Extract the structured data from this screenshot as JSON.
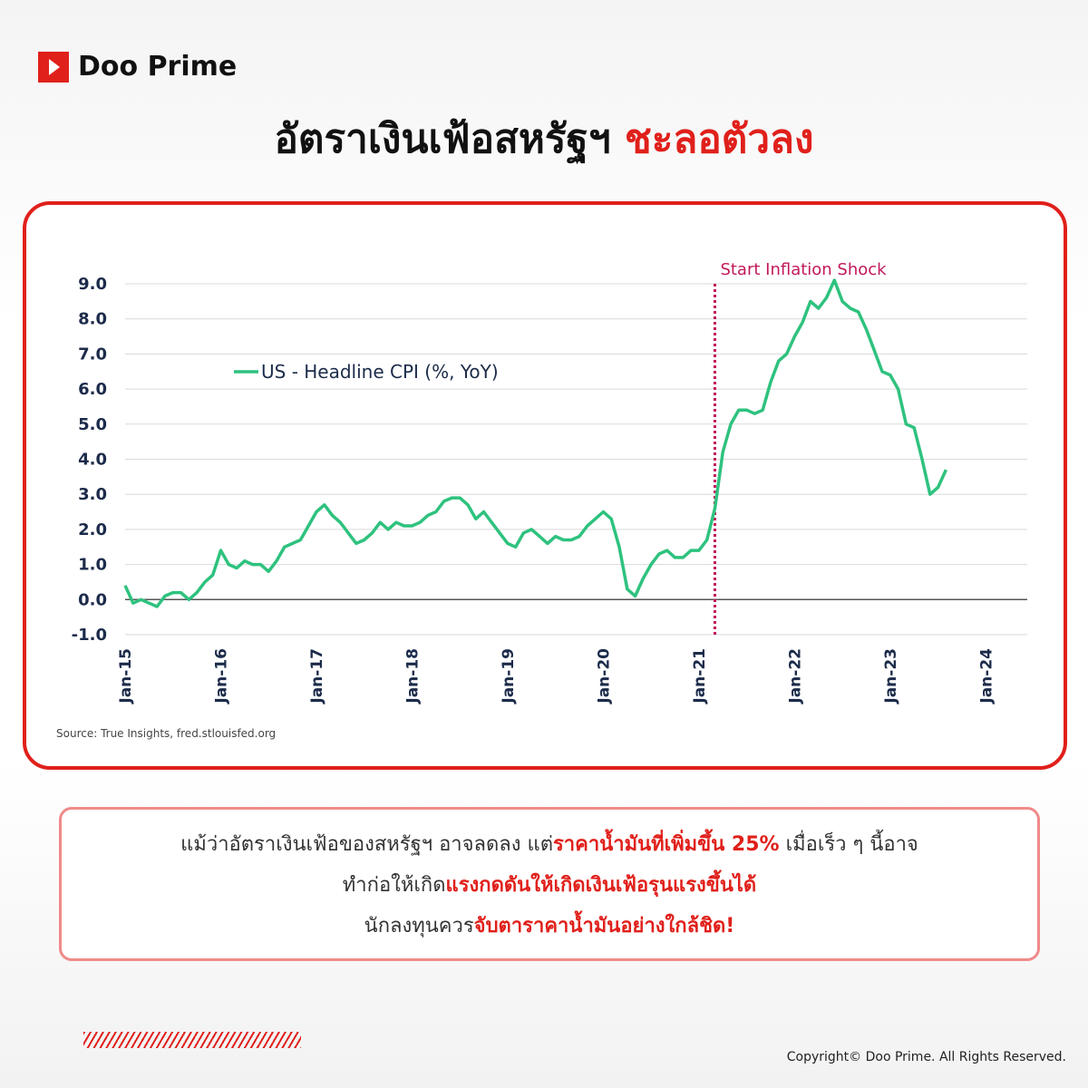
{
  "brand": "Doo Prime",
  "title": {
    "main": "อัตราเงินเฟ้อสหรัฐฯ",
    "accent": "ชะลอตัวลง"
  },
  "chart_data": {
    "type": "line",
    "categories": [
      "Jan-15",
      null,
      null,
      null,
      null,
      null,
      null,
      null,
      null,
      null,
      null,
      null,
      "Jan-16",
      null,
      null,
      null,
      null,
      null,
      null,
      null,
      null,
      null,
      null,
      null,
      "Jan-17",
      null,
      null,
      null,
      null,
      null,
      null,
      null,
      null,
      null,
      null,
      null,
      "Jan-18",
      null,
      null,
      null,
      null,
      null,
      null,
      null,
      null,
      null,
      null,
      null,
      "Jan-19",
      null,
      null,
      null,
      null,
      null,
      null,
      null,
      null,
      null,
      null,
      null,
      "Jan-20",
      null,
      null,
      null,
      null,
      null,
      null,
      null,
      null,
      null,
      null,
      null,
      "Jan-21",
      null,
      null,
      null,
      null,
      null,
      null,
      null,
      null,
      null,
      null,
      null,
      "Jan-22",
      null,
      null,
      null,
      null,
      null,
      null,
      null,
      null,
      null,
      null,
      null,
      "Jan-23",
      null,
      null,
      null,
      null,
      null,
      null,
      null,
      null,
      null,
      null,
      null,
      "Jan-24"
    ],
    "series": [
      {
        "name": "US - Headline CPI (%, YoY)",
        "color": "#2ec27e",
        "values": [
          0.4,
          -0.1,
          0.0,
          -0.1,
          -0.2,
          0.1,
          0.2,
          0.2,
          0.0,
          0.2,
          0.5,
          0.7,
          1.4,
          1.0,
          0.9,
          1.1,
          1.0,
          1.0,
          0.8,
          1.1,
          1.5,
          1.6,
          1.7,
          2.1,
          2.5,
          2.7,
          2.4,
          2.2,
          1.9,
          1.6,
          1.7,
          1.9,
          2.2,
          2.0,
          2.2,
          2.1,
          2.1,
          2.2,
          2.4,
          2.5,
          2.8,
          2.9,
          2.9,
          2.7,
          2.3,
          2.5,
          2.2,
          1.9,
          1.6,
          1.5,
          1.9,
          2.0,
          1.8,
          1.6,
          1.8,
          1.7,
          1.7,
          1.8,
          2.1,
          2.3,
          2.5,
          2.3,
          1.5,
          0.3,
          0.1,
          0.6,
          1.0,
          1.3,
          1.4,
          1.2,
          1.2,
          1.4,
          1.4,
          1.7,
          2.6,
          4.2,
          5.0,
          5.4,
          5.4,
          5.3,
          5.4,
          6.2,
          6.8,
          7.0,
          7.5,
          7.9,
          8.5,
          8.3,
          8.6,
          9.1,
          8.5,
          8.3,
          8.2,
          7.7,
          7.1,
          6.5,
          6.4,
          6.0,
          5.0,
          4.9,
          4.0,
          3.0,
          3.2,
          3.7,
          null,
          null,
          null,
          null,
          null
        ]
      }
    ],
    "ylim": [
      -1,
      9
    ],
    "yticks": [
      {
        "value": -1,
        "label": "-1.0"
      },
      {
        "value": 0,
        "label": "0.0"
      },
      {
        "value": 1,
        "label": "1.0"
      },
      {
        "value": 2,
        "label": "2.0"
      },
      {
        "value": 3,
        "label": "3.0"
      },
      {
        "value": 4,
        "label": "4.0"
      },
      {
        "value": 5,
        "label": "5.0"
      },
      {
        "value": 6,
        "label": "6.0"
      },
      {
        "value": 7,
        "label": "7.0"
      },
      {
        "value": 8,
        "label": "8.0"
      },
      {
        "value": 9,
        "label": "9.0"
      }
    ],
    "grid": true,
    "annotation": {
      "text": "Start Inflation Shock",
      "x": 74,
      "color": "#c2185b"
    },
    "source": "Source: True Insights, fred.stlouisfed.org"
  },
  "note": {
    "lines": [
      [
        {
          "text": "แม้ว่าอัตราเงินเฟ้อของสหรัฐฯ อาจลดลง แต่",
          "color": "#333333"
        },
        {
          "text": "ราคาน้ำมันที่เพิ่มขึ้น 25%",
          "color": "#e0201b"
        },
        {
          "text": " เมื่อเร็ว ๆ นี้อาจ",
          "color": "#333333"
        }
      ],
      [
        {
          "text": "ทำก่อให้เกิด",
          "color": "#333333"
        },
        {
          "text": "แรงกดดันให้เกิดเงินเฟ้อรุนแรงขึ้นได้",
          "color": "#e0201b"
        }
      ],
      [
        {
          "text": "นักลงทุนควร",
          "color": "#333333"
        },
        {
          "text": "จับตาราคาน้ำมันอย่างใกล้ชิด!",
          "color": "#e0201b"
        }
      ]
    ]
  },
  "footer": "Copyright© Doo Prime. All Rights Reserved."
}
